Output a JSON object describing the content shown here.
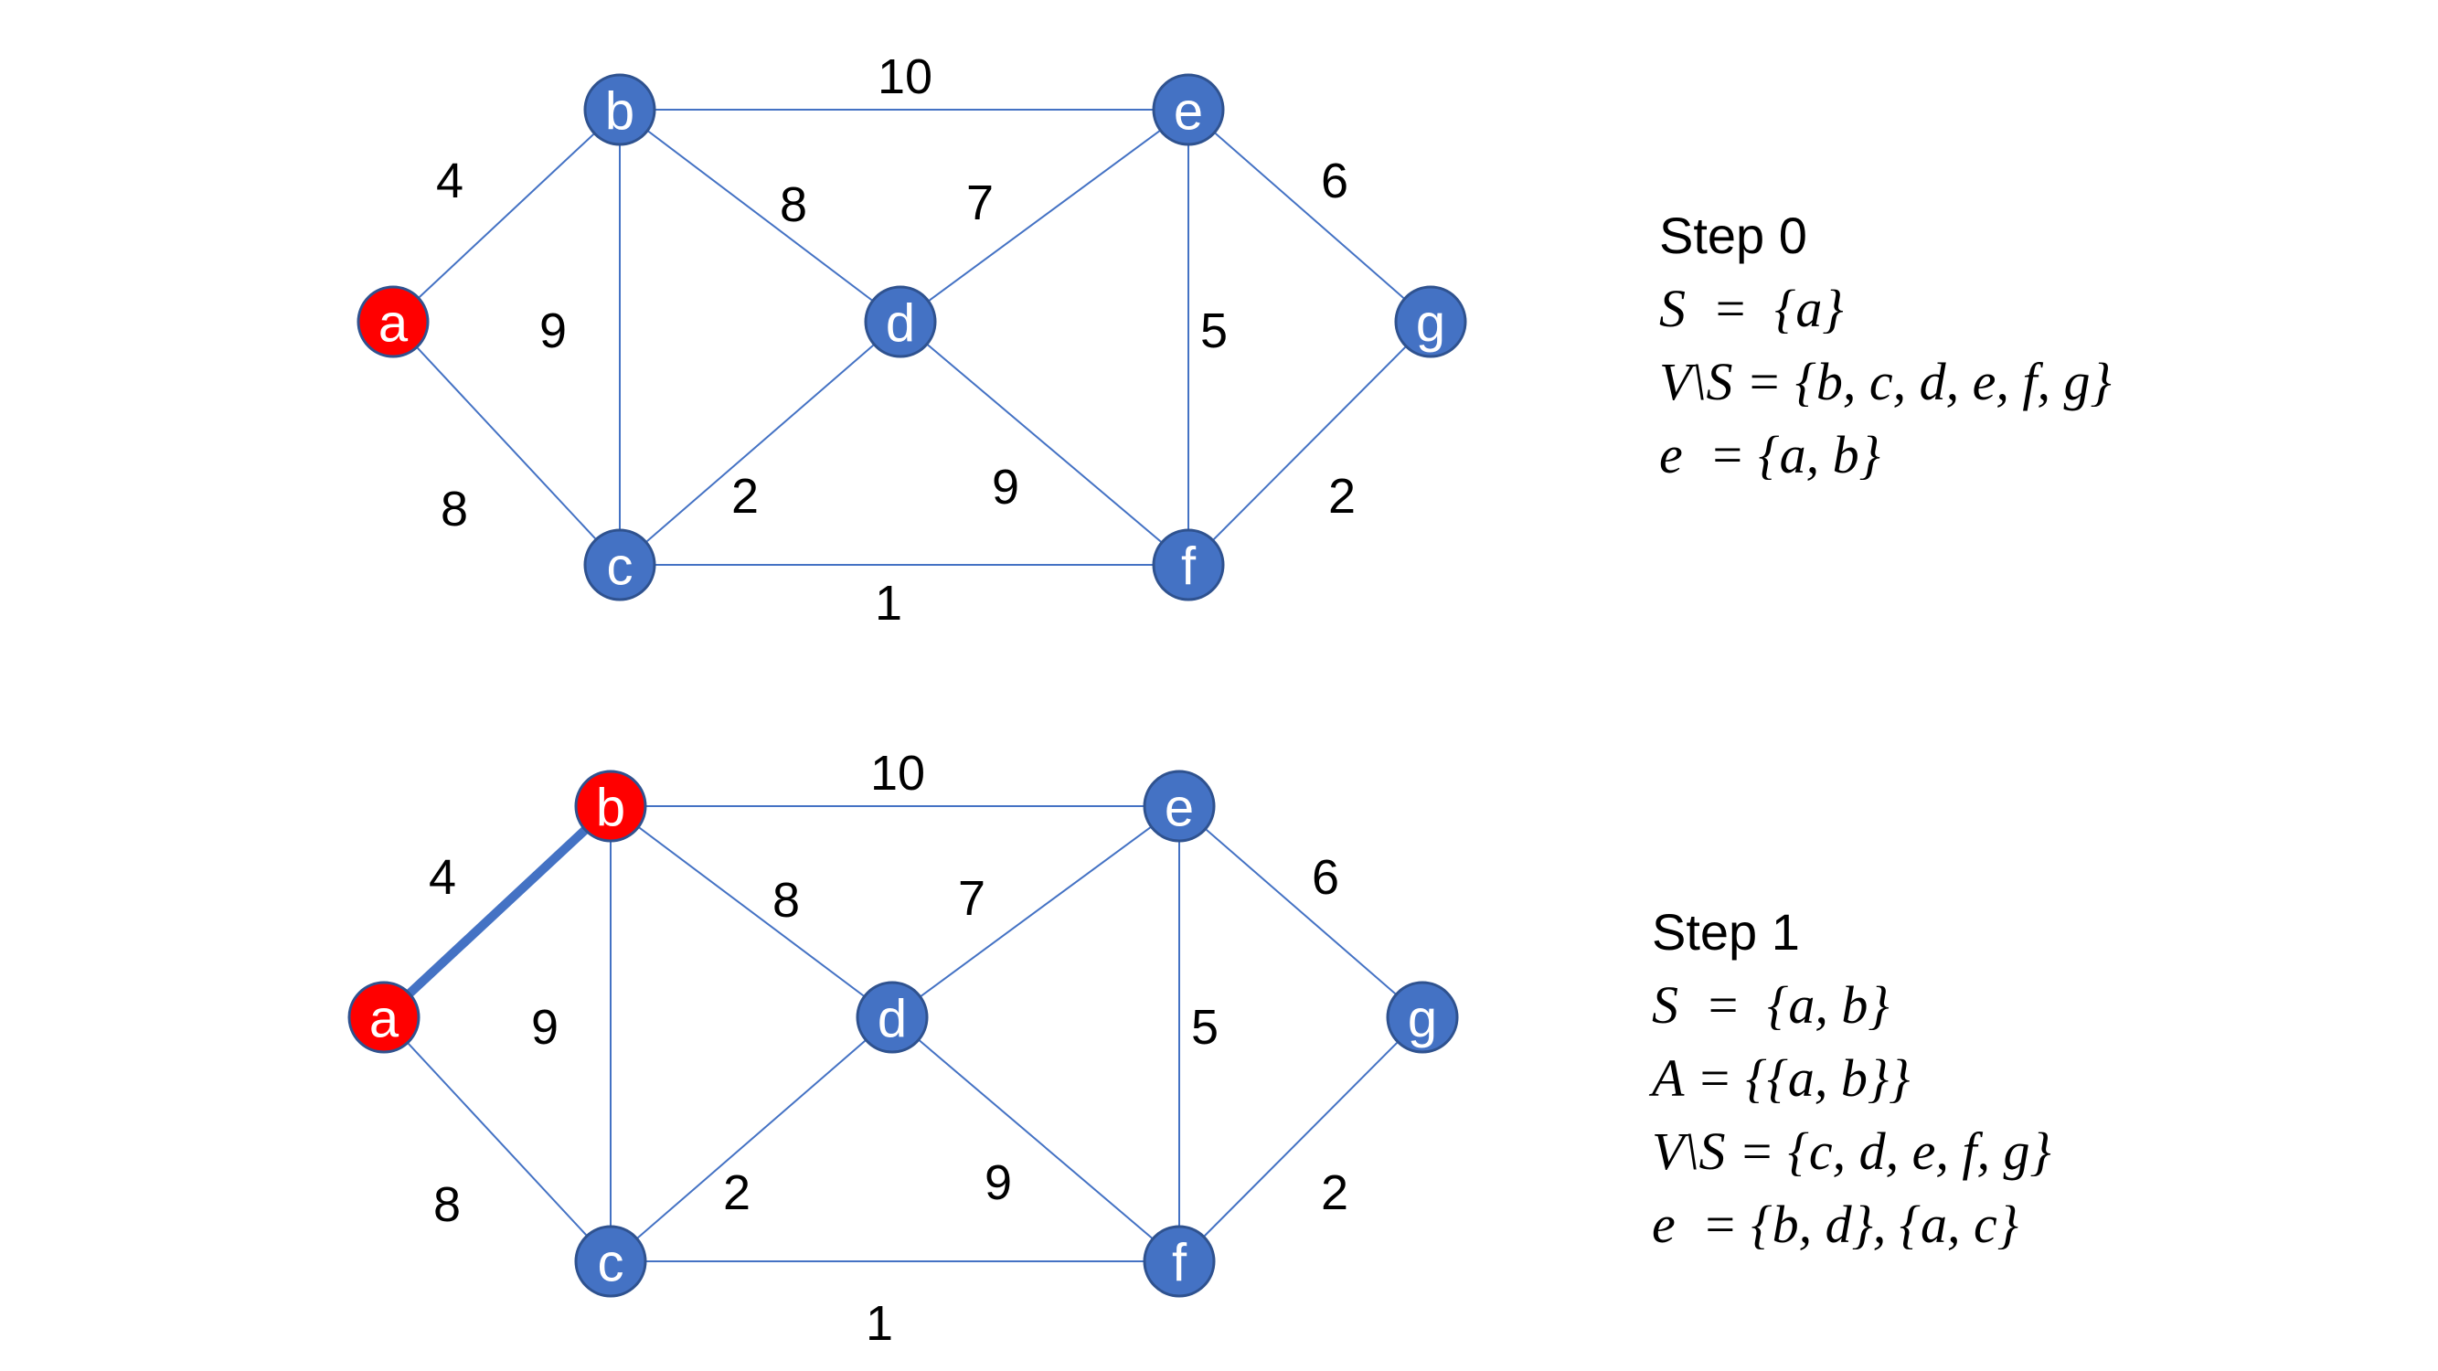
{
  "colors": {
    "node_default": "#4472c4",
    "node_selected": "#ff0000",
    "node_stroke": "#2f528f",
    "edge": "#4472c4"
  },
  "panels": [
    {
      "nodes": [
        {
          "id": "a",
          "label": "a",
          "selected": true
        },
        {
          "id": "b",
          "label": "b",
          "selected": false
        },
        {
          "id": "c",
          "label": "c",
          "selected": false
        },
        {
          "id": "d",
          "label": "d",
          "selected": false
        },
        {
          "id": "e",
          "label": "e",
          "selected": false
        },
        {
          "id": "f",
          "label": "f",
          "selected": false
        },
        {
          "id": "g",
          "label": "g",
          "selected": false
        }
      ],
      "edges": [
        {
          "from": "a",
          "to": "b",
          "weight": "4",
          "in_tree": false
        },
        {
          "from": "a",
          "to": "c",
          "weight": "8",
          "in_tree": false
        },
        {
          "from": "b",
          "to": "c",
          "weight": "9",
          "in_tree": false
        },
        {
          "from": "b",
          "to": "e",
          "weight": "10",
          "in_tree": false
        },
        {
          "from": "b",
          "to": "d",
          "weight": "8",
          "in_tree": false
        },
        {
          "from": "d",
          "to": "e",
          "weight": "7",
          "in_tree": false
        },
        {
          "from": "c",
          "to": "d",
          "weight": "2",
          "in_tree": false
        },
        {
          "from": "d",
          "to": "f",
          "weight": "9",
          "in_tree": false
        },
        {
          "from": "c",
          "to": "f",
          "weight": "1",
          "in_tree": false
        },
        {
          "from": "e",
          "to": "f",
          "weight": "5",
          "in_tree": false
        },
        {
          "from": "e",
          "to": "g",
          "weight": "6",
          "in_tree": false
        },
        {
          "from": "f",
          "to": "g",
          "weight": "2",
          "in_tree": false
        }
      ]
    },
    {
      "nodes": [
        {
          "id": "a",
          "label": "a",
          "selected": true
        },
        {
          "id": "b",
          "label": "b",
          "selected": true
        },
        {
          "id": "c",
          "label": "c",
          "selected": false
        },
        {
          "id": "d",
          "label": "d",
          "selected": false
        },
        {
          "id": "e",
          "label": "e",
          "selected": false
        },
        {
          "id": "f",
          "label": "f",
          "selected": false
        },
        {
          "id": "g",
          "label": "g",
          "selected": false
        }
      ],
      "edges": [
        {
          "from": "a",
          "to": "b",
          "weight": "4",
          "in_tree": true
        },
        {
          "from": "a",
          "to": "c",
          "weight": "8",
          "in_tree": false
        },
        {
          "from": "b",
          "to": "c",
          "weight": "9",
          "in_tree": false
        },
        {
          "from": "b",
          "to": "e",
          "weight": "10",
          "in_tree": false
        },
        {
          "from": "b",
          "to": "d",
          "weight": "8",
          "in_tree": false
        },
        {
          "from": "d",
          "to": "e",
          "weight": "7",
          "in_tree": false
        },
        {
          "from": "c",
          "to": "d",
          "weight": "2",
          "in_tree": false
        },
        {
          "from": "d",
          "to": "f",
          "weight": "9",
          "in_tree": false
        },
        {
          "from": "c",
          "to": "f",
          "weight": "1",
          "in_tree": false
        },
        {
          "from": "e",
          "to": "f",
          "weight": "5",
          "in_tree": false
        },
        {
          "from": "e",
          "to": "g",
          "weight": "6",
          "in_tree": false
        },
        {
          "from": "f",
          "to": "g",
          "weight": "2",
          "in_tree": false
        }
      ]
    }
  ],
  "steps": [
    {
      "title": "Step 0",
      "lines": [
        "S  =  {a}",
        "V\\S = {b, c, d, e, f, g}",
        "e  = {a, b}"
      ]
    },
    {
      "title": "Step 1",
      "lines": [
        "S  =  {a, b}",
        "A = {{a, b}}",
        "V\\S = {c, d, e, f, g}",
        "e  = {b, d}, {a, c}"
      ]
    }
  ]
}
